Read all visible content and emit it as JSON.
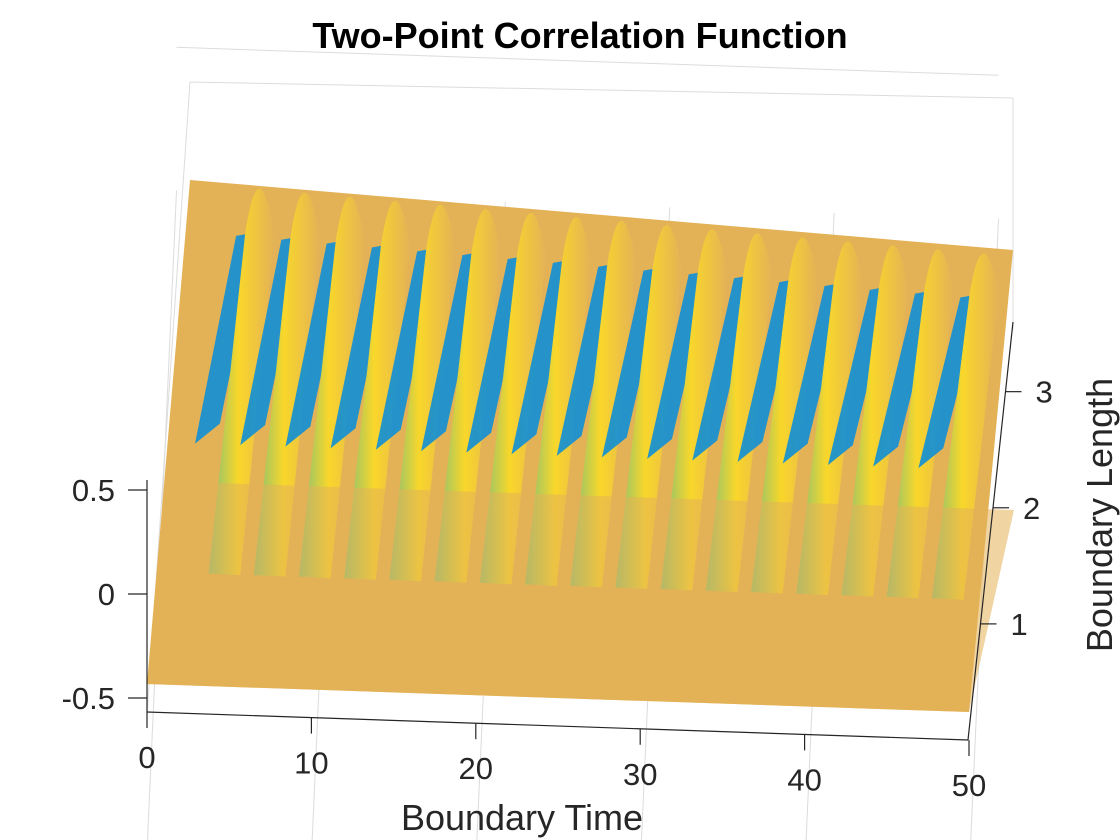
{
  "chart_data": {
    "type": "surface",
    "title": "Two-Point Correlation Function",
    "xlabel": "Boundary Time",
    "ylabel": "Boundary Length",
    "zlabel": "",
    "xlim": [
      0,
      50
    ],
    "ylim": [
      0,
      3.6
    ],
    "zlim": [
      -0.6,
      0.6
    ],
    "x_ticks": [
      0,
      10,
      20,
      30,
      40,
      50
    ],
    "x_tick_labels": [
      "0",
      "10",
      "20",
      "30",
      "40",
      "50"
    ],
    "y_ticks": [
      1,
      2,
      3
    ],
    "y_tick_labels": [
      "1",
      "2",
      "3"
    ],
    "z_ticks": [
      -0.5,
      0,
      0.5
    ],
    "z_tick_labels": [
      "-0.5",
      "0",
      "0.5"
    ],
    "grid": true,
    "colormap": "parula",
    "surface_description": {
      "flat_until_time": 2.8,
      "oscillation_period": 2.75,
      "oscillation_count": 17,
      "baseline_value": 0.12
    },
    "colors": {
      "low": "#0f8fd6",
      "mid": "#7fbf7a",
      "high": "#f9d72a",
      "flat": "#e3b257"
    }
  }
}
